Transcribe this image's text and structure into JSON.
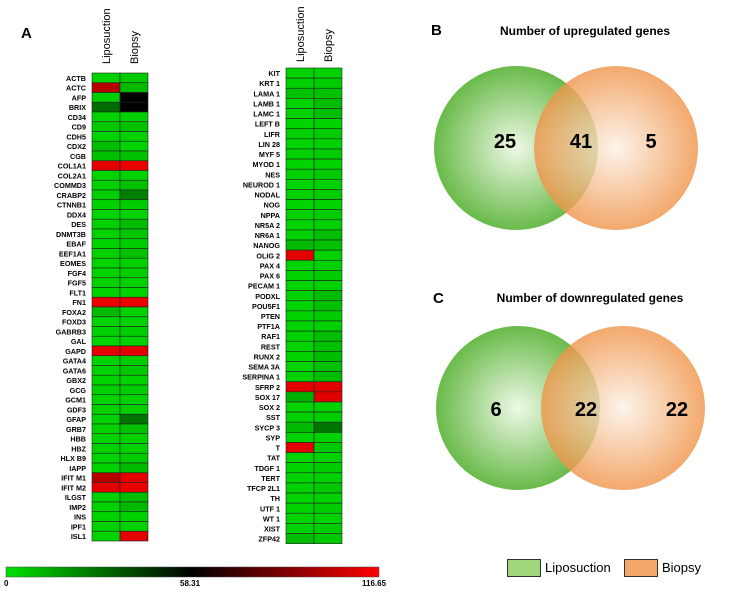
{
  "panels": {
    "a": "A",
    "b": "B",
    "c": "C"
  },
  "heatmap": {
    "columns": [
      "Liposuction",
      "Biopsy"
    ],
    "colors": {
      "low": "#00e000",
      "mid": "#000000",
      "high": "#ff0000",
      "border": "#222222"
    },
    "left_rows": [
      {
        "gene": "ACTB",
        "lipo": 4,
        "biopsy": 6
      },
      {
        "gene": "ACTC",
        "lipo": 100,
        "biopsy": 10
      },
      {
        "gene": "AFP",
        "lipo": 5,
        "biopsy": 58
      },
      {
        "gene": "BRIX",
        "lipo": 30,
        "biopsy": 58
      },
      {
        "gene": "CD34",
        "lipo": 3,
        "biopsy": 4
      },
      {
        "gene": "CD9",
        "lipo": 6,
        "biopsy": 8
      },
      {
        "gene": "CDH5",
        "lipo": 3,
        "biopsy": 4
      },
      {
        "gene": "CDX2",
        "lipo": 9,
        "biopsy": 3
      },
      {
        "gene": "CGB",
        "lipo": 8,
        "biopsy": 8
      },
      {
        "gene": "COL1A1",
        "lipo": 110,
        "biopsy": 112
      },
      {
        "gene": "COL2A1",
        "lipo": 3,
        "biopsy": 4
      },
      {
        "gene": "COMMD3",
        "lipo": 4,
        "biopsy": 8
      },
      {
        "gene": "CRABP2",
        "lipo": 5,
        "biopsy": 25
      },
      {
        "gene": "CTNNB1",
        "lipo": 4,
        "biopsy": 5
      },
      {
        "gene": "DDX4",
        "lipo": 3,
        "biopsy": 4
      },
      {
        "gene": "DES",
        "lipo": 4,
        "biopsy": 9
      },
      {
        "gene": "DNMT3B",
        "lipo": 4,
        "biopsy": 7
      },
      {
        "gene": "EBAF",
        "lipo": 3,
        "biopsy": 5
      },
      {
        "gene": "EEF1A1",
        "lipo": 4,
        "biopsy": 8
      },
      {
        "gene": "EOMES",
        "lipo": 3,
        "biopsy": 4
      },
      {
        "gene": "FGF4",
        "lipo": 3,
        "biopsy": 5
      },
      {
        "gene": "FGF5",
        "lipo": 4,
        "biopsy": 4
      },
      {
        "gene": "FLT1",
        "lipo": 3,
        "biopsy": 4
      },
      {
        "gene": "FN1",
        "lipo": 112,
        "biopsy": 112
      },
      {
        "gene": "FOXA2",
        "lipo": 10,
        "biopsy": 4
      },
      {
        "gene": "FOXD3",
        "lipo": 3,
        "biopsy": 4
      },
      {
        "gene": "GABRB3",
        "lipo": 4,
        "biopsy": 5
      },
      {
        "gene": "GAL",
        "lipo": 3,
        "biopsy": 4
      },
      {
        "gene": "GAPD",
        "lipo": 110,
        "biopsy": 110
      },
      {
        "gene": "GATA4",
        "lipo": 3,
        "biopsy": 5
      },
      {
        "gene": "GATA6",
        "lipo": 4,
        "biopsy": 6
      },
      {
        "gene": "GBX2",
        "lipo": 3,
        "biopsy": 4
      },
      {
        "gene": "GCG",
        "lipo": 4,
        "biopsy": 5
      },
      {
        "gene": "GCM1",
        "lipo": 3,
        "biopsy": 4
      },
      {
        "gene": "GDF3",
        "lipo": 4,
        "biopsy": 5
      },
      {
        "gene": "GFAP",
        "lipo": 4,
        "biopsy": 28
      },
      {
        "gene": "GRB7",
        "lipo": 3,
        "biopsy": 8
      },
      {
        "gene": "HBB",
        "lipo": 3,
        "biopsy": 4
      },
      {
        "gene": "HBZ",
        "lipo": 4,
        "biopsy": 4
      },
      {
        "gene": "HLX B9",
        "lipo": 3,
        "biopsy": 5
      },
      {
        "gene": "IAPP",
        "lipo": 4,
        "biopsy": 10
      },
      {
        "gene": "IFIT M1",
        "lipo": 100,
        "biopsy": 110
      },
      {
        "gene": "IFIT M2",
        "lipo": 110,
        "biopsy": 112
      },
      {
        "gene": "ILGST",
        "lipo": 4,
        "biopsy": 9
      },
      {
        "gene": "IMP2",
        "lipo": 3,
        "biopsy": 10
      },
      {
        "gene": "INS",
        "lipo": 3,
        "biopsy": 4
      },
      {
        "gene": "IPF1",
        "lipo": 4,
        "biopsy": 4
      },
      {
        "gene": "ISL1",
        "lipo": 3,
        "biopsy": 110
      }
    ],
    "right_rows": [
      {
        "gene": "KIT",
        "lipo": 3,
        "biopsy": 4
      },
      {
        "gene": "KRT 1",
        "lipo": 4,
        "biopsy": 5
      },
      {
        "gene": "LAMA 1",
        "lipo": 8,
        "biopsy": 8
      },
      {
        "gene": "LAMB 1",
        "lipo": 3,
        "biopsy": 9
      },
      {
        "gene": "LAMC 1",
        "lipo": 4,
        "biopsy": 9
      },
      {
        "gene": "LEFT B",
        "lipo": 3,
        "biopsy": 4
      },
      {
        "gene": "LIFR",
        "lipo": 4,
        "biopsy": 5
      },
      {
        "gene": "LIN 28",
        "lipo": 3,
        "biopsy": 4
      },
      {
        "gene": "MYF 5",
        "lipo": 4,
        "biopsy": 5
      },
      {
        "gene": "MYOD 1",
        "lipo": 3,
        "biopsy": 4
      },
      {
        "gene": "NES",
        "lipo": 4,
        "biopsy": 6
      },
      {
        "gene": "NEUROD 1",
        "lipo": 3,
        "biopsy": 4
      },
      {
        "gene": "NODAL",
        "lipo": 4,
        "biopsy": 5
      },
      {
        "gene": "NOG",
        "lipo": 3,
        "biopsy": 4
      },
      {
        "gene": "NPPA",
        "lipo": 4,
        "biopsy": 5
      },
      {
        "gene": "NR5A 2",
        "lipo": 3,
        "biopsy": 4
      },
      {
        "gene": "NR6A 1",
        "lipo": 4,
        "biopsy": 9
      },
      {
        "gene": "NANOG",
        "lipo": 10,
        "biopsy": 8
      },
      {
        "gene": "OLIG 2",
        "lipo": 110,
        "biopsy": 4
      },
      {
        "gene": "PAX 4",
        "lipo": 3,
        "biopsy": 4
      },
      {
        "gene": "PAX 6",
        "lipo": 4,
        "biopsy": 5
      },
      {
        "gene": "PECAM 1",
        "lipo": 3,
        "biopsy": 4
      },
      {
        "gene": "PODXL",
        "lipo": 4,
        "biopsy": 9
      },
      {
        "gene": "POU5F1",
        "lipo": 3,
        "biopsy": 8
      },
      {
        "gene": "PTEN",
        "lipo": 4,
        "biopsy": 5
      },
      {
        "gene": "PTF1A",
        "lipo": 3,
        "biopsy": 4
      },
      {
        "gene": "RAF1",
        "lipo": 4,
        "biopsy": 9
      },
      {
        "gene": "REST",
        "lipo": 3,
        "biopsy": 8
      },
      {
        "gene": "RUNX 2",
        "lipo": 4,
        "biopsy": 9
      },
      {
        "gene": "SEMA 3A",
        "lipo": 3,
        "biopsy": 8
      },
      {
        "gene": "SERPINA 1",
        "lipo": 4,
        "biopsy": 9
      },
      {
        "gene": "SFRP 2",
        "lipo": 110,
        "biopsy": 110
      },
      {
        "gene": "SOX 17",
        "lipo": 12,
        "biopsy": 110
      },
      {
        "gene": "SOX 2",
        "lipo": 3,
        "biopsy": 4
      },
      {
        "gene": "SST",
        "lipo": 4,
        "biopsy": 5
      },
      {
        "gene": "SYCP 3",
        "lipo": 10,
        "biopsy": 28
      },
      {
        "gene": "SYP",
        "lipo": 3,
        "biopsy": 4
      },
      {
        "gene": "T",
        "lipo": 110,
        "biopsy": 6
      },
      {
        "gene": "TAT",
        "lipo": 3,
        "biopsy": 4
      },
      {
        "gene": "TDGF 1",
        "lipo": 4,
        "biopsy": 5
      },
      {
        "gene": "TERT",
        "lipo": 3,
        "biopsy": 4
      },
      {
        "gene": "TFCP 2L1",
        "lipo": 4,
        "biopsy": 6
      },
      {
        "gene": "TH",
        "lipo": 3,
        "biopsy": 4
      },
      {
        "gene": "UTF 1",
        "lipo": 4,
        "biopsy": 5
      },
      {
        "gene": "WT 1",
        "lipo": 3,
        "biopsy": 4
      },
      {
        "gene": "XIST",
        "lipo": 4,
        "biopsy": 5
      },
      {
        "gene": "ZFP42",
        "lipo": 9,
        "biopsy": 6
      }
    ],
    "colorbar": {
      "min_label": "0",
      "mid_label": "58.31",
      "max_label": "116.65",
      "min": 0,
      "mid": 58.31,
      "max": 116.65
    }
  },
  "venn_up": {
    "title": "Number of upregulated genes",
    "only_liposuction": "25",
    "both": "41",
    "only_biopsy": "5"
  },
  "venn_down": {
    "title": "Number of downregulated genes",
    "only_liposuction": "6",
    "both": "22",
    "only_biopsy": "22"
  },
  "legend": {
    "liposuction": "Liposuction",
    "biopsy": "Biopsy",
    "liposuction_color": "#9fd67d",
    "biopsy_color": "#f5a76a"
  }
}
